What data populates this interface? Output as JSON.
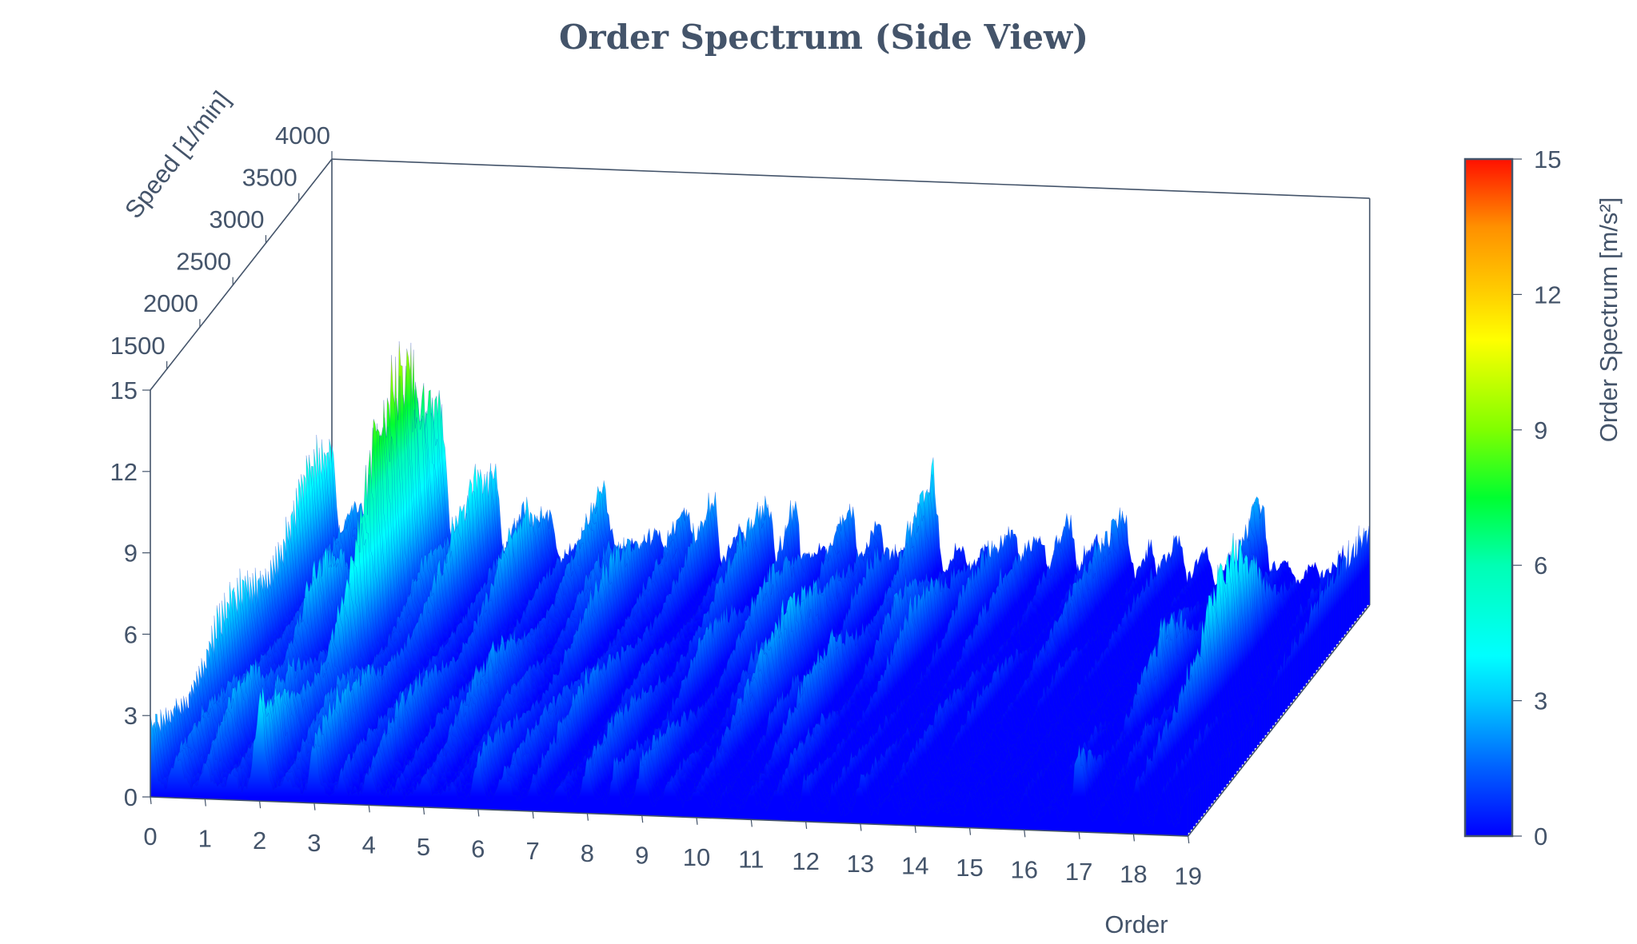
{
  "chart_data": {
    "type": "surface",
    "title": "Order Spectrum (Side View)",
    "x_axis": {
      "label": "Order",
      "range": [
        0,
        19
      ],
      "ticks": [
        "0",
        "1",
        "2",
        "3",
        "4",
        "5",
        "6",
        "7",
        "8",
        "9",
        "10",
        "11",
        "12",
        "13",
        "14",
        "15",
        "16",
        "17",
        "18",
        "19"
      ]
    },
    "y_axis": {
      "label": "Speed [1/min]",
      "range": [
        1250,
        4000
      ],
      "ticks": [
        "1500",
        "2000",
        "2500",
        "3000",
        "3500",
        "4000"
      ],
      "tick_values": [
        1500,
        2000,
        2500,
        3000,
        3500,
        4000
      ]
    },
    "z_axis": {
      "label": "",
      "range": [
        0,
        15
      ],
      "ticks": [
        "0",
        "3",
        "6",
        "9",
        "12",
        "15"
      ],
      "tick_values": [
        0,
        3,
        6,
        9,
        12,
        15
      ]
    },
    "colorbar": {
      "label": "Order Spectrum [m/s²]",
      "range": [
        0,
        15
      ],
      "ticks": [
        "0",
        "3",
        "6",
        "9",
        "12",
        "15"
      ],
      "tick_values": [
        0,
        3,
        6,
        9,
        12,
        15
      ],
      "colors": [
        {
          "value": 0,
          "color": "#0000ff"
        },
        {
          "value": 1.5,
          "color": "#0060ff"
        },
        {
          "value": 3,
          "color": "#00c8ff"
        },
        {
          "value": 4,
          "color": "#00ffff"
        },
        {
          "value": 6,
          "color": "#00ffb4"
        },
        {
          "value": 7.5,
          "color": "#00ff30"
        },
        {
          "value": 9,
          "color": "#80ff00"
        },
        {
          "value": 11,
          "color": "#ffff00"
        },
        {
          "value": 12,
          "color": "#ffd000"
        },
        {
          "value": 13.5,
          "color": "#ff9000"
        },
        {
          "value": 15,
          "color": "#ff1000"
        }
      ]
    },
    "ridges": [
      {
        "order": 0,
        "amplitude_low_speed": 1.5,
        "amplitude_high_speed": 2.5
      },
      {
        "order": 1,
        "amplitude_low_speed": 2.0,
        "amplitude_high_speed": 3.0
      },
      {
        "order": 2,
        "amplitude_low_speed": 3.0,
        "amplitude_high_speed": 13.0
      },
      {
        "order": 3,
        "amplitude_low_speed": 2.0,
        "amplitude_high_speed": 3.5
      },
      {
        "order": 4,
        "amplitude_low_speed": 1.5,
        "amplitude_high_speed": 3.0
      },
      {
        "order": 5,
        "amplitude_low_speed": 1.5,
        "amplitude_high_speed": 2.5
      },
      {
        "order": 6,
        "amplitude_low_speed": 1.5,
        "amplitude_high_speed": 2.5
      },
      {
        "order": 7,
        "amplitude_low_speed": 1.5,
        "amplitude_high_speed": 2.5
      },
      {
        "order": 8,
        "amplitude_low_speed": 1.5,
        "amplitude_high_speed": 2.5
      },
      {
        "order": 9,
        "amplitude_low_speed": 1.5,
        "amplitude_high_speed": 2.5
      },
      {
        "order": 10,
        "amplitude_low_speed": 1.5,
        "amplitude_high_speed": 4.0
      },
      {
        "order": 11,
        "amplitude_low_speed": 1.5,
        "amplitude_high_speed": 3.5
      },
      {
        "order": 12,
        "amplitude_low_speed": 1.2,
        "amplitude_high_speed": 3.0
      },
      {
        "order": 13,
        "amplitude_low_speed": 1.0,
        "amplitude_high_speed": 2.0
      },
      {
        "order": 14,
        "amplitude_low_speed": 1.0,
        "amplitude_high_speed": 1.8
      },
      {
        "order": 15,
        "amplitude_low_speed": 0.8,
        "amplitude_high_speed": 1.5
      },
      {
        "order": 16,
        "amplitude_low_speed": 0.8,
        "amplitude_high_speed": 1.5
      },
      {
        "order": 17,
        "amplitude_low_speed": 2.5,
        "amplitude_high_speed": 3.0
      },
      {
        "order": 18,
        "amplitude_low_speed": 3.0,
        "amplitude_high_speed": 4.5
      },
      {
        "order": 19,
        "amplitude_low_speed": 1.5,
        "amplitude_high_speed": 2.5
      }
    ]
  }
}
